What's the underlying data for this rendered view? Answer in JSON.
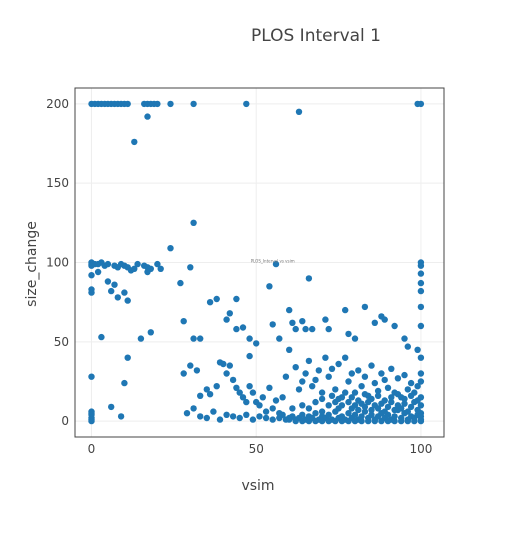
{
  "chart_data": {
    "type": "scatter",
    "title": "PLOS Interval 1",
    "xlabel": "vsim",
    "ylabel": "size_change",
    "xlim": [
      -5,
      107
    ],
    "ylim": [
      -10,
      210
    ],
    "xticks": [
      0,
      50,
      100
    ],
    "yticks": [
      0,
      50,
      100,
      150,
      200
    ],
    "grid": true,
    "marker_color": "#1f77b4",
    "annotation": {
      "text": "PLOS_Interval vs vsim",
      "x": 55,
      "y": 100
    },
    "series": [
      {
        "points": [
          [
            0,
            200
          ],
          [
            1,
            200
          ],
          [
            2,
            200
          ],
          [
            3,
            200
          ],
          [
            4,
            200
          ],
          [
            5,
            200
          ],
          [
            6,
            200
          ],
          [
            7,
            200
          ],
          [
            8,
            200
          ],
          [
            9,
            200
          ],
          [
            10,
            200
          ],
          [
            11,
            200
          ],
          [
            16,
            200
          ],
          [
            17,
            200
          ],
          [
            18,
            200
          ],
          [
            19,
            200
          ],
          [
            20,
            200
          ],
          [
            24,
            200
          ],
          [
            31,
            200
          ],
          [
            47,
            200
          ],
          [
            99,
            200
          ],
          [
            100,
            200
          ],
          [
            63,
            195
          ],
          [
            17,
            192
          ],
          [
            13,
            176
          ],
          [
            31,
            125
          ],
          [
            24,
            109
          ],
          [
            27,
            87
          ],
          [
            0,
            100
          ],
          [
            0,
            99
          ],
          [
            0,
            98
          ],
          [
            1,
            99
          ],
          [
            2,
            99
          ],
          [
            3,
            100
          ],
          [
            4,
            98
          ],
          [
            5,
            99
          ],
          [
            7,
            98
          ],
          [
            8,
            97
          ],
          [
            9,
            99
          ],
          [
            10,
            98
          ],
          [
            11,
            97
          ],
          [
            12,
            95
          ],
          [
            13,
            96
          ],
          [
            14,
            99
          ],
          [
            16,
            98
          ],
          [
            17,
            97
          ],
          [
            20,
            99
          ],
          [
            21,
            96
          ],
          [
            30,
            97
          ],
          [
            0,
            92
          ],
          [
            0,
            83
          ],
          [
            0,
            81
          ],
          [
            2,
            94
          ],
          [
            5,
            88
          ],
          [
            6,
            82
          ],
          [
            7,
            86
          ],
          [
            8,
            78
          ],
          [
            10,
            81
          ],
          [
            11,
            76
          ],
          [
            17,
            94
          ],
          [
            18,
            96
          ],
          [
            56,
            99
          ],
          [
            100,
            100
          ],
          [
            100,
            98
          ],
          [
            100,
            93
          ],
          [
            100,
            87
          ],
          [
            100,
            82
          ],
          [
            66,
            90
          ],
          [
            54,
            85
          ],
          [
            3,
            53
          ],
          [
            11,
            40
          ],
          [
            10,
            24
          ],
          [
            0,
            28
          ],
          [
            6,
            9
          ],
          [
            9,
            3
          ],
          [
            0,
            6
          ],
          [
            0,
            4
          ],
          [
            0,
            2
          ],
          [
            0,
            1
          ],
          [
            0,
            0
          ],
          [
            0,
            5
          ],
          [
            15,
            52
          ],
          [
            18,
            56
          ],
          [
            28,
            63
          ],
          [
            31,
            52
          ],
          [
            33,
            52
          ],
          [
            36,
            75
          ],
          [
            38,
            77
          ],
          [
            41,
            64
          ],
          [
            42,
            68
          ],
          [
            44,
            58
          ],
          [
            44,
            77
          ],
          [
            46,
            59
          ],
          [
            48,
            41
          ],
          [
            48,
            52
          ],
          [
            50,
            49
          ],
          [
            55,
            61
          ],
          [
            57,
            52
          ],
          [
            60,
            70
          ],
          [
            61,
            62
          ],
          [
            62,
            58
          ],
          [
            64,
            63
          ],
          [
            65,
            58
          ],
          [
            67,
            58
          ],
          [
            71,
            64
          ],
          [
            72,
            58
          ],
          [
            77,
            70
          ],
          [
            78,
            55
          ],
          [
            80,
            52
          ],
          [
            83,
            72
          ],
          [
            86,
            62
          ],
          [
            88,
            66
          ],
          [
            89,
            64
          ],
          [
            92,
            60
          ],
          [
            95,
            52
          ],
          [
            96,
            47
          ],
          [
            99,
            45
          ],
          [
            100,
            40
          ],
          [
            100,
            30
          ],
          [
            100,
            60
          ],
          [
            100,
            72
          ],
          [
            28,
            30
          ],
          [
            30,
            35
          ],
          [
            32,
            32
          ],
          [
            33,
            16
          ],
          [
            35,
            20
          ],
          [
            36,
            17
          ],
          [
            38,
            22
          ],
          [
            39,
            37
          ],
          [
            40,
            36
          ],
          [
            41,
            30
          ],
          [
            42,
            35
          ],
          [
            43,
            26
          ],
          [
            44,
            21
          ],
          [
            45,
            18
          ],
          [
            46,
            15
          ],
          [
            47,
            12
          ],
          [
            48,
            22
          ],
          [
            49,
            18
          ],
          [
            50,
            12
          ],
          [
            51,
            10
          ],
          [
            52,
            15
          ],
          [
            53,
            6
          ],
          [
            54,
            21
          ],
          [
            55,
            8
          ],
          [
            56,
            13
          ],
          [
            57,
            5
          ],
          [
            58,
            15
          ],
          [
            59,
            28
          ],
          [
            60,
            45
          ],
          [
            61,
            8
          ],
          [
            62,
            34
          ],
          [
            63,
            20
          ],
          [
            64,
            25
          ],
          [
            65,
            30
          ],
          [
            66,
            38
          ],
          [
            67,
            22
          ],
          [
            68,
            26
          ],
          [
            69,
            32
          ],
          [
            70,
            18
          ],
          [
            71,
            40
          ],
          [
            72,
            28
          ],
          [
            73,
            33
          ],
          [
            74,
            20
          ],
          [
            75,
            36
          ],
          [
            76,
            15
          ],
          [
            77,
            40
          ],
          [
            78,
            25
          ],
          [
            79,
            30
          ],
          [
            80,
            18
          ],
          [
            81,
            32
          ],
          [
            82,
            22
          ],
          [
            83,
            28
          ],
          [
            84,
            16
          ],
          [
            85,
            35
          ],
          [
            86,
            24
          ],
          [
            87,
            19
          ],
          [
            88,
            30
          ],
          [
            89,
            26
          ],
          [
            90,
            21
          ],
          [
            91,
            33
          ],
          [
            92,
            18
          ],
          [
            93,
            27
          ],
          [
            94,
            15
          ],
          [
            95,
            29
          ],
          [
            96,
            20
          ],
          [
            97,
            24
          ],
          [
            98,
            18
          ],
          [
            99,
            22
          ],
          [
            100,
            25
          ],
          [
            100,
            15
          ],
          [
            100,
            10
          ],
          [
            100,
            5
          ],
          [
            29,
            5
          ],
          [
            31,
            8
          ],
          [
            33,
            3
          ],
          [
            35,
            2
          ],
          [
            37,
            6
          ],
          [
            39,
            1
          ],
          [
            41,
            4
          ],
          [
            43,
            3
          ],
          [
            45,
            2
          ],
          [
            47,
            4
          ],
          [
            49,
            1
          ],
          [
            51,
            3
          ],
          [
            53,
            2
          ],
          [
            55,
            1
          ],
          [
            57,
            2
          ],
          [
            58,
            4
          ],
          [
            59,
            1
          ],
          [
            60,
            2
          ],
          [
            61,
            3
          ],
          [
            62,
            1
          ],
          [
            63,
            2
          ],
          [
            64,
            4
          ],
          [
            65,
            1
          ],
          [
            66,
            3
          ],
          [
            67,
            2
          ],
          [
            68,
            5
          ],
          [
            69,
            1
          ],
          [
            70,
            3
          ],
          [
            71,
            2
          ],
          [
            72,
            4
          ],
          [
            73,
            1
          ],
          [
            74,
            6
          ],
          [
            75,
            2
          ],
          [
            76,
            3
          ],
          [
            77,
            1
          ],
          [
            78,
            5
          ],
          [
            79,
            2
          ],
          [
            80,
            4
          ],
          [
            81,
            1
          ],
          [
            82,
            3
          ],
          [
            83,
            6
          ],
          [
            84,
            2
          ],
          [
            85,
            4
          ],
          [
            86,
            1
          ],
          [
            87,
            3
          ],
          [
            88,
            5
          ],
          [
            89,
            2
          ],
          [
            90,
            4
          ],
          [
            91,
            1
          ],
          [
            92,
            3
          ],
          [
            93,
            7
          ],
          [
            94,
            2
          ],
          [
            95,
            5
          ],
          [
            96,
            1
          ],
          [
            97,
            3
          ],
          [
            98,
            2
          ],
          [
            99,
            4
          ],
          [
            100,
            1
          ],
          [
            100,
            3
          ],
          [
            64,
            10
          ],
          [
            66,
            8
          ],
          [
            68,
            12
          ],
          [
            70,
            6
          ],
          [
            72,
            10
          ],
          [
            74,
            12
          ],
          [
            75,
            8
          ],
          [
            76,
            10
          ],
          [
            78,
            12
          ],
          [
            79,
            8
          ],
          [
            80,
            10
          ],
          [
            81,
            7
          ],
          [
            82,
            11
          ],
          [
            83,
            9
          ],
          [
            84,
            12
          ],
          [
            85,
            7
          ],
          [
            86,
            10
          ],
          [
            87,
            8
          ],
          [
            88,
            11
          ],
          [
            89,
            6
          ],
          [
            90,
            9
          ],
          [
            91,
            12
          ],
          [
            92,
            7
          ],
          [
            93,
            10
          ],
          [
            94,
            8
          ],
          [
            95,
            11
          ],
          [
            96,
            6
          ],
          [
            97,
            9
          ],
          [
            98,
            12
          ],
          [
            99,
            7
          ],
          [
            70,
            14
          ],
          [
            73,
            16
          ],
          [
            75,
            14
          ],
          [
            77,
            18
          ],
          [
            79,
            15
          ],
          [
            81,
            13
          ],
          [
            83,
            17
          ],
          [
            85,
            14
          ],
          [
            87,
            16
          ],
          [
            89,
            13
          ],
          [
            91,
            15
          ],
          [
            93,
            17
          ],
          [
            95,
            14
          ],
          [
            97,
            16
          ],
          [
            99,
            13
          ],
          [
            60,
            1
          ],
          [
            62,
            0
          ],
          [
            64,
            0
          ],
          [
            66,
            0
          ],
          [
            68,
            0
          ],
          [
            70,
            0
          ],
          [
            72,
            0
          ],
          [
            74,
            0
          ],
          [
            76,
            0
          ],
          [
            78,
            0
          ],
          [
            80,
            0
          ],
          [
            82,
            0
          ],
          [
            84,
            0
          ],
          [
            86,
            0
          ],
          [
            88,
            0
          ],
          [
            90,
            0
          ],
          [
            92,
            0
          ],
          [
            94,
            0
          ],
          [
            96,
            0
          ],
          [
            98,
            0
          ],
          [
            100,
            0
          ]
        ]
      }
    ]
  }
}
